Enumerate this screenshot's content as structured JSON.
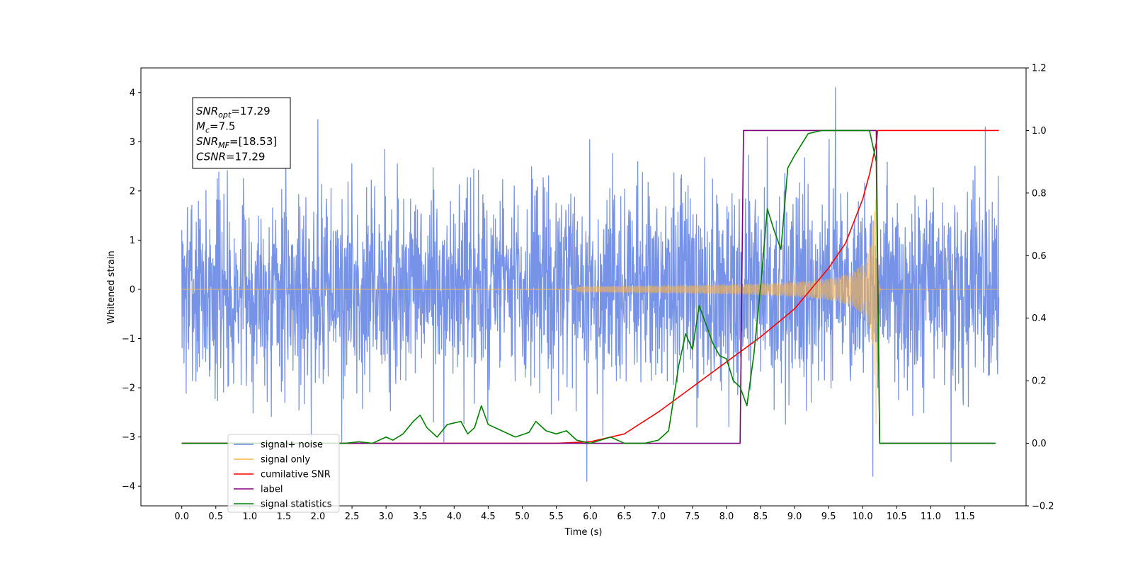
{
  "chart_data": {
    "type": "line",
    "xlabel": "Time (s)",
    "ylabel": "Whitened strain",
    "xlim": [
      -0.6,
      12.4
    ],
    "ylim": [
      -4.4,
      4.5
    ],
    "y2lim": [
      -0.2,
      1.2
    ],
    "x_ticks": [
      "0.0",
      "0.5",
      "1.0",
      "1.5",
      "2.0",
      "2.5",
      "3.0",
      "3.5",
      "4.0",
      "4.5",
      "5.0",
      "5.5",
      "6.0",
      "6.5",
      "7.0",
      "7.5",
      "8.0",
      "8.5",
      "9.0",
      "9.5",
      "10.0",
      "10.5",
      "11.0",
      "11.5"
    ],
    "y_ticks": [
      "4",
      "3",
      "2",
      "1",
      "0",
      "−1",
      "−2",
      "−3",
      "−4"
    ],
    "y2_ticks": [
      "1.2",
      "1.0",
      "0.8",
      "0.6",
      "0.4",
      "0.2",
      "0.0",
      "−0.2"
    ],
    "grid": false,
    "legend_position": "lower-left",
    "annotation": {
      "lines": [
        {
          "base": "SNR",
          "sub": "opt",
          "rest": "=17.29"
        },
        {
          "base": "M",
          "sub": "c",
          "rest": "=7.5"
        },
        {
          "base": "SNR",
          "sub": "MF",
          "rest": "=[18.53]"
        },
        {
          "base": "CSNR",
          "sub": "",
          "rest": "=17.29"
        }
      ]
    },
    "series": [
      {
        "name": "signal+ noise",
        "color": "#6b8ae6",
        "axis": "left",
        "kind": "noise",
        "x_range": [
          0.0,
          12.0
        ],
        "typical_amplitude": 1.5,
        "max": 4.1,
        "min": -3.9,
        "noise_seed": 7,
        "spikes": [
          [
            2.0,
            3.45
          ],
          [
            2.35,
            -3.1
          ],
          [
            3.85,
            -3.1
          ],
          [
            5.95,
            -3.9
          ],
          [
            9.6,
            4.1
          ],
          [
            10.15,
            -3.8
          ],
          [
            11.3,
            -3.5
          ],
          [
            11.8,
            3.3
          ],
          [
            1.9,
            -3.0
          ],
          [
            8.6,
            3.1
          ]
        ]
      },
      {
        "name": "signal only",
        "color": "#fbb54a",
        "axis": "left",
        "kind": "chirp",
        "x_range": [
          0.0,
          12.0
        ],
        "merger_time": 10.2,
        "peak_amplitude": 3.2
      },
      {
        "name": "cumilative SNR",
        "color": "#ff0000",
        "axis": "right",
        "x": [
          0.0,
          5.5,
          6.0,
          6.5,
          7.0,
          7.5,
          8.0,
          8.5,
          9.0,
          9.5,
          9.75,
          10.0,
          10.1,
          10.2,
          10.22,
          10.25,
          12.0
        ],
        "y": [
          0.0,
          0.0,
          0.005,
          0.03,
          0.1,
          0.18,
          0.26,
          0.34,
          0.43,
          0.56,
          0.64,
          0.78,
          0.86,
          0.96,
          1.0,
          1.0,
          1.0
        ]
      },
      {
        "name": "label",
        "color": "#7f007f",
        "axis": "right",
        "x": [
          0.0,
          8.2,
          8.25,
          10.2,
          10.25,
          11.95
        ],
        "y": [
          0.0,
          0.0,
          1.0,
          1.0,
          0.0,
          0.0
        ]
      },
      {
        "name": "signal statistics",
        "color": "#008000",
        "axis": "right",
        "x": [
          0.0,
          2.4,
          2.6,
          2.8,
          3.0,
          3.1,
          3.25,
          3.4,
          3.5,
          3.6,
          3.75,
          3.9,
          4.0,
          4.1,
          4.2,
          4.3,
          4.4,
          4.5,
          4.7,
          4.9,
          5.1,
          5.2,
          5.35,
          5.5,
          5.65,
          5.8,
          6.0,
          6.3,
          6.5,
          6.8,
          7.0,
          7.15,
          7.3,
          7.4,
          7.5,
          7.6,
          7.7,
          7.8,
          7.9,
          8.0,
          8.1,
          8.2,
          8.3,
          8.4,
          8.5,
          8.6,
          8.7,
          8.8,
          8.9,
          9.0,
          9.2,
          9.4,
          9.6,
          10.1,
          10.2,
          10.25,
          11.95
        ],
        "y": [
          0.0,
          0.0,
          0.005,
          0.0,
          0.02,
          0.01,
          0.03,
          0.07,
          0.09,
          0.05,
          0.02,
          0.06,
          0.065,
          0.07,
          0.03,
          0.05,
          0.12,
          0.06,
          0.04,
          0.02,
          0.035,
          0.07,
          0.04,
          0.03,
          0.04,
          0.01,
          0.0,
          0.02,
          0.0,
          0.0,
          0.01,
          0.04,
          0.25,
          0.35,
          0.3,
          0.44,
          0.38,
          0.32,
          0.28,
          0.27,
          0.2,
          0.18,
          0.12,
          0.28,
          0.5,
          0.75,
          0.68,
          0.62,
          0.88,
          0.92,
          0.99,
          1.0,
          1.0,
          1.0,
          0.9,
          0.0,
          0.0
        ]
      }
    ]
  }
}
